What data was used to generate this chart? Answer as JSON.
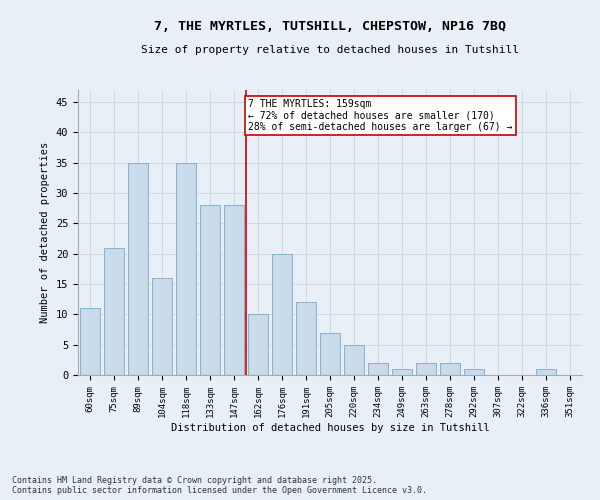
{
  "title_line1": "7, THE MYRTLES, TUTSHILL, CHEPSTOW, NP16 7BQ",
  "title_line2": "Size of property relative to detached houses in Tutshill",
  "xlabel": "Distribution of detached houses by size in Tutshill",
  "ylabel": "Number of detached properties",
  "categories": [
    "60sqm",
    "75sqm",
    "89sqm",
    "104sqm",
    "118sqm",
    "133sqm",
    "147sqm",
    "162sqm",
    "176sqm",
    "191sqm",
    "205sqm",
    "220sqm",
    "234sqm",
    "249sqm",
    "263sqm",
    "278sqm",
    "292sqm",
    "307sqm",
    "322sqm",
    "336sqm",
    "351sqm"
  ],
  "values": [
    11,
    21,
    35,
    16,
    35,
    28,
    28,
    10,
    20,
    12,
    7,
    5,
    2,
    1,
    2,
    2,
    1,
    0,
    0,
    1,
    0
  ],
  "bar_color": "#c9daea",
  "bar_edge_color": "#7baac8",
  "grid_color": "#ccd8e4",
  "background_color": "#e8eff6",
  "vline_x_index": 7,
  "vline_color": "#cc0000",
  "annotation_text": "7 THE MYRTLES: 159sqm\n← 72% of detached houses are smaller (170)\n28% of semi-detached houses are larger (67) →",
  "annotation_box_facecolor": "#ffffff",
  "annotation_box_edgecolor": "#cc0000",
  "ylim": [
    0,
    47
  ],
  "yticks": [
    0,
    5,
    10,
    15,
    20,
    25,
    30,
    35,
    40,
    45
  ],
  "footer": "Contains HM Land Registry data © Crown copyright and database right 2025.\nContains public sector information licensed under the Open Government Licence v3.0."
}
